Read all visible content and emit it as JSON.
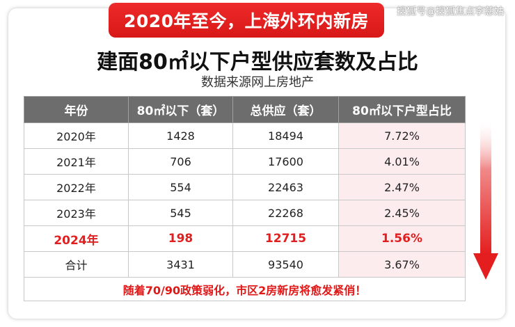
{
  "banner": "2020年至今，上海外环内新房",
  "watermark": "搜狐号@搜狐焦点李慈姑",
  "chart_data": {
    "type": "table",
    "title": "建面80㎡以下户型供应套数及占比",
    "subtitle": "数据来源网上房地产",
    "columns": [
      "年份",
      "80㎡以下（套）",
      "总供应（套）",
      "80㎡以下户型占比"
    ],
    "rows": [
      [
        "2020年",
        "1428",
        "18494",
        "7.72%"
      ],
      [
        "2021年",
        "706",
        "17600",
        "4.01%"
      ],
      [
        "2022年",
        "554",
        "22463",
        "2.47%"
      ],
      [
        "2023年",
        "545",
        "22268",
        "2.45%"
      ],
      [
        "2024年",
        "198",
        "12715",
        "1.56%"
      ],
      [
        "合计",
        "3431",
        "93540",
        "3.67%"
      ]
    ],
    "highlight_row": 4,
    "footnote": "随着70/90政策弱化，市区2房新房将愈发紧俏！"
  },
  "colors": {
    "banner_red": "#e02020",
    "header_gray": "#6d6d6d",
    "share_column_tint": "#fdeced",
    "highlight_text": "#e02020",
    "arrow_red": "#e41e1e"
  },
  "icons": {
    "trend_arrow": "down-arrow-icon"
  }
}
